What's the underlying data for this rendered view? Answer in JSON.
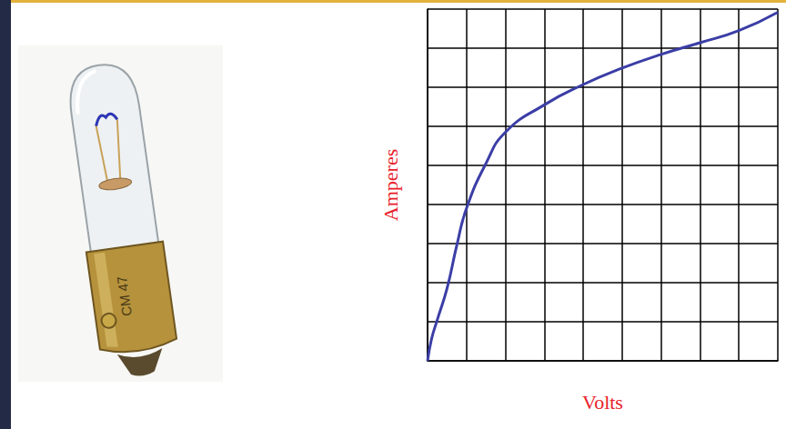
{
  "chart_data": {
    "type": "line",
    "x": [
      0,
      0.1,
      0.25,
      0.5,
      0.75,
      1,
      1.5,
      2,
      3,
      4,
      5,
      6,
      7,
      8,
      9
    ],
    "values": [
      0,
      0.55,
      1.05,
      1.85,
      2.95,
      3.9,
      5.05,
      5.85,
      6.55,
      7.07,
      7.49,
      7.84,
      8.14,
      8.45,
      8.92
    ],
    "color": "#3b3ea6",
    "xlabel": "Volts",
    "ylabel": "Amperes",
    "xlim": [
      0,
      9
    ],
    "ylim": [
      0,
      9
    ],
    "xticks": [
      0,
      1,
      2,
      3,
      4,
      5,
      6,
      7,
      8,
      9
    ],
    "yticks": [
      0,
      1,
      2,
      3,
      4,
      5,
      6,
      7,
      8,
      9
    ],
    "grid": true,
    "tick_labels": false
  },
  "photo": {
    "label": "CM 47"
  }
}
